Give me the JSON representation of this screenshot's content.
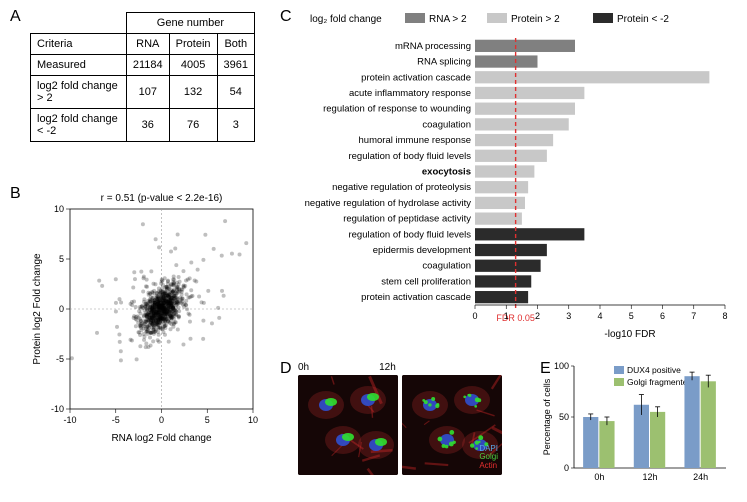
{
  "panelA": {
    "label": "A",
    "header_group": "Gene number",
    "columns": [
      "Criteria",
      "RNA",
      "Protein",
      "Both"
    ],
    "rows": [
      [
        "Measured",
        "21184",
        "4005",
        "3961"
      ],
      [
        "log2 fold change > 2",
        "107",
        "132",
        "54"
      ],
      [
        "log2 fold change < -2",
        "36",
        "76",
        "3"
      ]
    ]
  },
  "panelB": {
    "label": "B",
    "correlation": "r = 0.51 (p-value < 2.2e-16)",
    "xlabel": "RNA log2 Fold change",
    "ylabel": "Protein log2 Fold change",
    "xlim": [
      -10,
      10
    ],
    "ylim": [
      -10,
      10
    ],
    "ticks": [
      -10,
      -5,
      0,
      5,
      10
    ],
    "point_color": "#000000",
    "point_opacity": 0.25,
    "grid_dash": "2,2",
    "n_core": 800,
    "n_outlier": 120
  },
  "panelC": {
    "label": "C",
    "legend_title": "log₂ fold change",
    "legend": [
      {
        "label": "RNA > 2",
        "color": "#808080"
      },
      {
        "label": "Protein > 2",
        "color": "#c8c8c8"
      },
      {
        "label": "Protein < -2",
        "color": "#2b2b2b"
      }
    ],
    "xlabel": "-log10 FDR",
    "fdr_label": "FDR 0.05",
    "fdr_line_x": 1.3,
    "fdr_color": "#e03030",
    "xlim": [
      0,
      8
    ],
    "xticks": [
      0,
      1,
      2,
      3,
      4,
      5,
      6,
      7,
      8
    ],
    "items": [
      {
        "label": "mRNA processing",
        "group": 0,
        "value": 3.2,
        "bold": false
      },
      {
        "label": "RNA splicing",
        "group": 0,
        "value": 2.0,
        "bold": false
      },
      {
        "label": "protein activation cascade",
        "group": 1,
        "value": 7.5,
        "bold": false
      },
      {
        "label": "acute inflammatory response",
        "group": 1,
        "value": 3.5,
        "bold": false
      },
      {
        "label": "regulation of response to wounding",
        "group": 1,
        "value": 3.2,
        "bold": false
      },
      {
        "label": "coagulation",
        "group": 1,
        "value": 3.0,
        "bold": false
      },
      {
        "label": "humoral immune response",
        "group": 1,
        "value": 2.5,
        "bold": false
      },
      {
        "label": "regulation of body fluid levels",
        "group": 1,
        "value": 2.3,
        "bold": false
      },
      {
        "label": "exocytosis",
        "group": 1,
        "value": 1.9,
        "bold": true
      },
      {
        "label": "negative regulation of proteolysis",
        "group": 1,
        "value": 1.7,
        "bold": false
      },
      {
        "label": "negative regulation of hydrolase activity",
        "group": 1,
        "value": 1.6,
        "bold": false
      },
      {
        "label": "regulation of peptidase activity",
        "group": 1,
        "value": 1.5,
        "bold": false
      },
      {
        "label": "regulation of body fluid levels",
        "group": 2,
        "value": 3.5,
        "bold": false
      },
      {
        "label": "epidermis development",
        "group": 2,
        "value": 2.3,
        "bold": false
      },
      {
        "label": "coagulation",
        "group": 2,
        "value": 2.1,
        "bold": false
      },
      {
        "label": "stem cell proliferation",
        "group": 2,
        "value": 1.8,
        "bold": false
      },
      {
        "label": "protein activation cascade",
        "group": 2,
        "value": 1.7,
        "bold": false
      }
    ]
  },
  "panelD": {
    "label": "D",
    "times": [
      "0h",
      "12h"
    ],
    "stains": [
      {
        "name": "DAPI",
        "color": "#5aa8e8"
      },
      {
        "name": "Golgi",
        "color": "#4cd040"
      },
      {
        "name": "Actin",
        "color": "#e83030"
      }
    ]
  },
  "panelE": {
    "label": "E",
    "ylabel": "Percentage of cells",
    "legend": [
      {
        "label": "DUX4 positive",
        "color": "#7a9cc8"
      },
      {
        "label": "Golgi fragmented",
        "color": "#9cc070"
      }
    ],
    "categories": [
      "0h",
      "12h",
      "24h"
    ],
    "ylim": [
      0,
      100
    ],
    "yticks": [
      0,
      50,
      100
    ],
    "series": [
      {
        "key": "DUX4 positive",
        "color": "#7a9cc8",
        "values": [
          50,
          62,
          90
        ],
        "err": [
          3,
          10,
          4
        ]
      },
      {
        "key": "Golgi fragmented",
        "color": "#9cc070",
        "values": [
          46,
          55,
          85
        ],
        "err": [
          4,
          5,
          6
        ]
      }
    ]
  }
}
